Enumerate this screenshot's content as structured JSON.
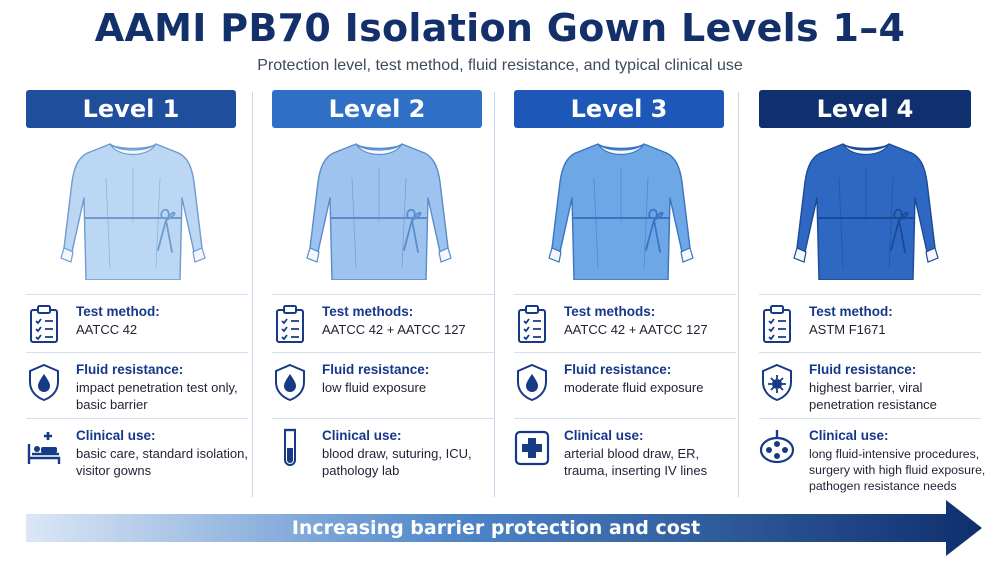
{
  "title": "AAMI PB70 Isolation Gown Levels 1–4",
  "subtitle": "Protection level, test method, fluid resistance, and typical clinical use",
  "levels": [
    {
      "name": "Level 1",
      "header_color": "#1e4e9c",
      "gown_fill": "#bcd7f4",
      "gown_stroke": "#6f9bd0",
      "test_label": "Test method:",
      "test_value": "AATCC 42",
      "fluid_label": "Fluid resistance:",
      "fluid_value": "impact penetration test only, basic barrier",
      "clinical_label": "Clinical use:",
      "clinical_value": "basic care, standard isolation, visitor gowns",
      "test_icon": "clipboard-checklist-icon",
      "fluid_icon": "shield-droplet-icon",
      "clinical_icon": "patient-bed-icon"
    },
    {
      "name": "Level 2",
      "header_color": "#2f6fc6",
      "gown_fill": "#9dc3ee",
      "gown_stroke": "#5a8ccc",
      "test_label": "Test methods:",
      "test_value": "AATCC 42 + AATCC 127",
      "fluid_label": "Fluid resistance:",
      "fluid_value": "low fluid exposure",
      "clinical_label": "Clinical use:",
      "clinical_value": "blood draw, suturing, ICU, pathology lab",
      "test_icon": "clipboard-checklist-icon",
      "fluid_icon": "shield-droplet-icon",
      "clinical_icon": "test-tube-icon"
    },
    {
      "name": "Level 3",
      "header_color": "#1d58b8",
      "gown_fill": "#6ea7e6",
      "gown_stroke": "#3b74c2",
      "test_label": "Test methods:",
      "test_value": "AATCC 42 + AATCC 127",
      "fluid_label": "Fluid resistance:",
      "fluid_value": "moderate fluid exposure",
      "clinical_label": "Clinical use:",
      "clinical_value": "arterial blood draw, ER, trauma, inserting IV lines",
      "test_icon": "clipboard-checklist-icon",
      "fluid_icon": "shield-droplet-icon",
      "clinical_icon": "medical-cross-icon"
    },
    {
      "name": "Level 4",
      "header_color": "#0f2f6e",
      "gown_fill": "#2f68c2",
      "gown_stroke": "#1c4a96",
      "test_label": "Test method:",
      "test_value": "ASTM F1671",
      "fluid_label": "Fluid resistance:",
      "fluid_value": "highest barrier, viral penetration resistance",
      "clinical_label": "Clinical use:",
      "clinical_value": "long fluid-intensive procedures, surgery with high fluid exposure, pathogen resistance needs",
      "test_icon": "clipboard-checklist-icon",
      "fluid_icon": "shield-virus-icon",
      "clinical_icon": "surgical-lamp-icon"
    }
  ],
  "arrow_label": "Increasing barrier protection and cost",
  "colors": {
    "title": "#13306b",
    "icon": "#163a86",
    "arrow_start": "#dbe7f6",
    "arrow_end": "#0f2f6e"
  }
}
